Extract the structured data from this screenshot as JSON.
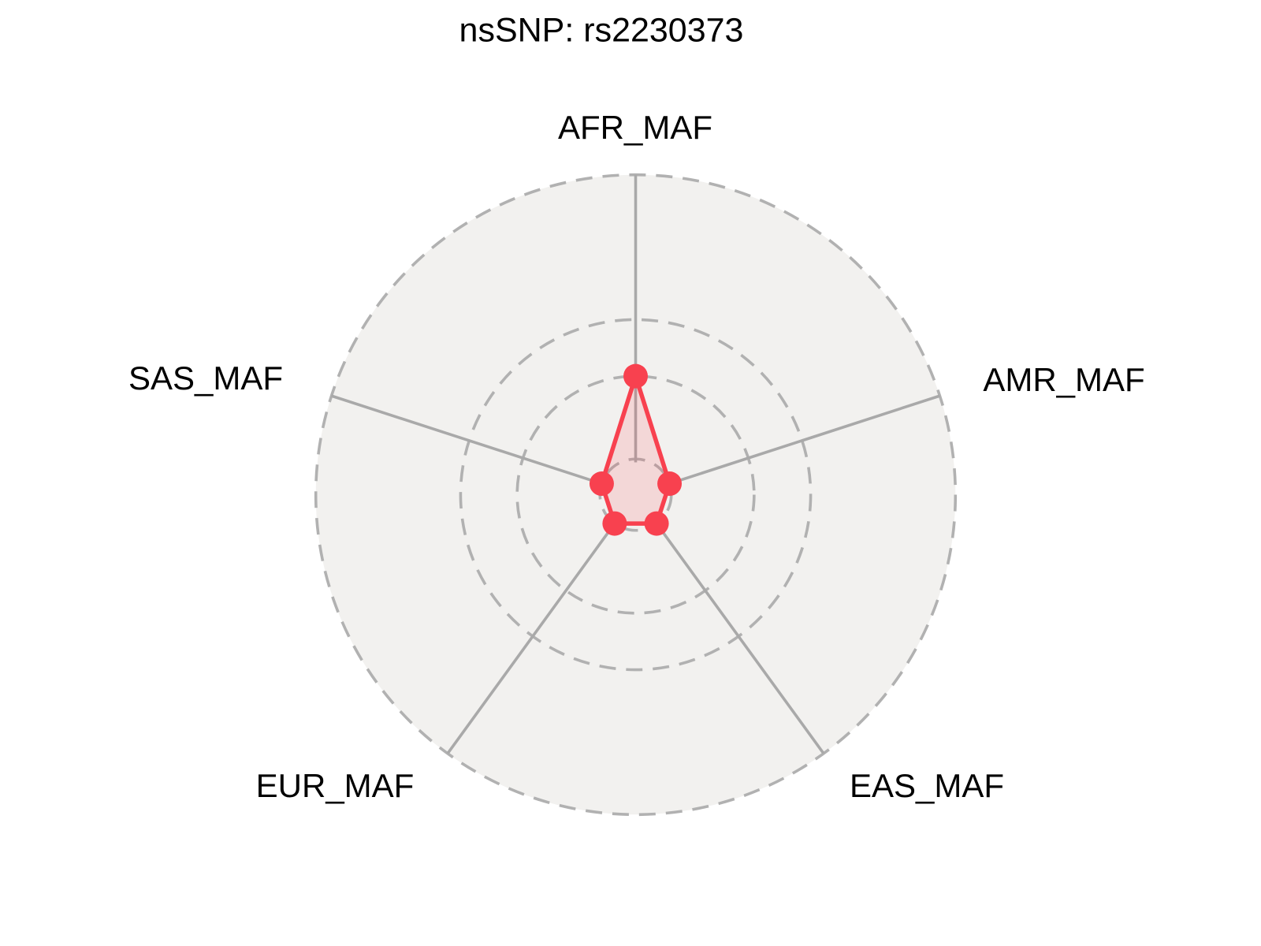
{
  "title": "nsSNP: rs2230373",
  "chart_data": {
    "type": "radar",
    "title": "nsSNP: rs2230373",
    "categories": [
      "AFR_MAF",
      "AMR_MAF",
      "EAS_MAF",
      "EUR_MAF",
      "SAS_MAF"
    ],
    "series": [
      {
        "name": "rs2230373",
        "values": [
          0.01,
          0.002,
          0.002,
          0.002,
          0.002
        ]
      }
    ],
    "radial_scale": "log10",
    "radial_range": [
      0.001,
      0.5
    ],
    "gridline_values": [
      0.002,
      0.01,
      0.03,
      0.5
    ],
    "axis_angles_deg": [
      90,
      18,
      -54,
      -126,
      162
    ],
    "grid_style": "dashed",
    "legend": "none",
    "tick_labels_shown": false,
    "colors": {
      "series_stroke": "#F8414F",
      "series_fill": "rgba(248,65,79,0.15)",
      "grid_line": "#B1B1B1",
      "axis_line": "#A9A9A9",
      "plot_background": "#F2F1EF",
      "page_background": "#FFFFFF",
      "label_color": "#000000"
    }
  }
}
